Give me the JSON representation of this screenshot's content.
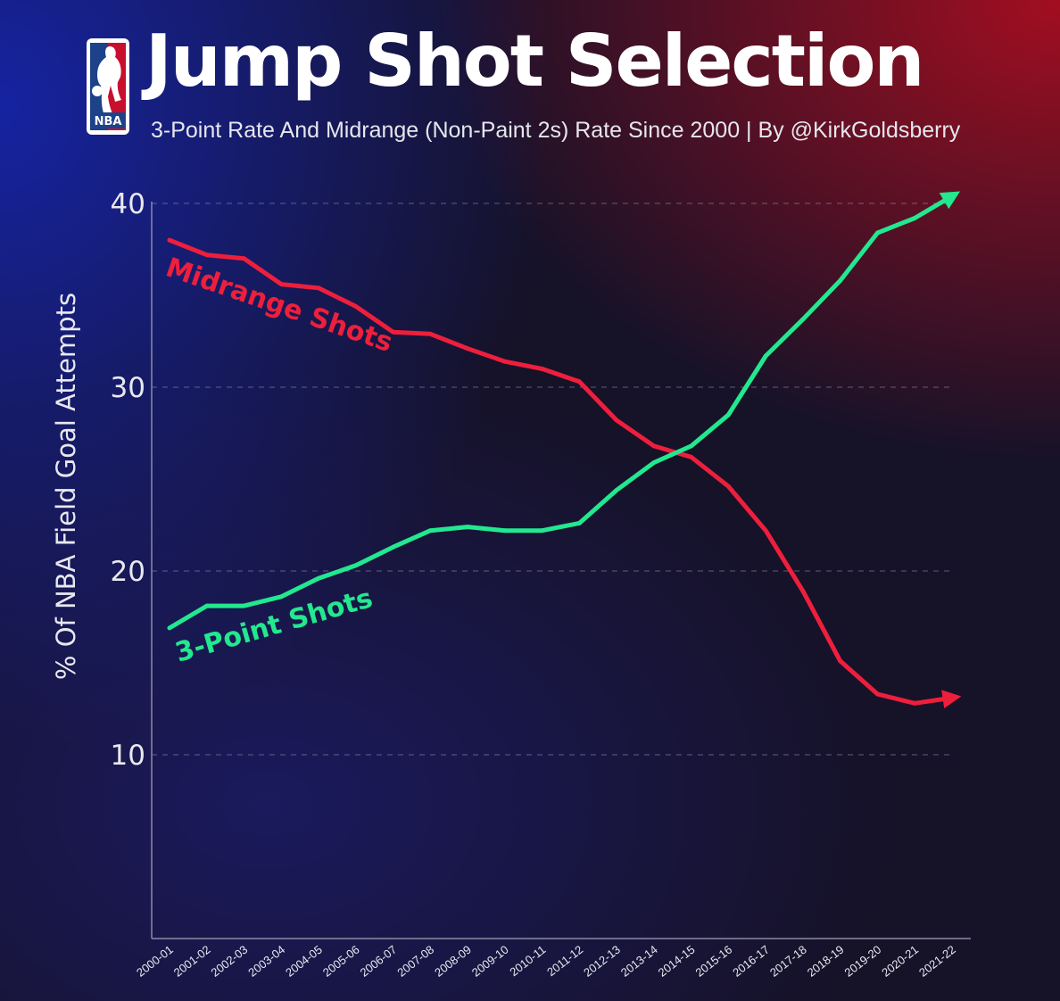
{
  "header": {
    "logo_text": "NBA",
    "title": "Jump Shot Selection",
    "subtitle": "3-Point Rate And Midrange (Non-Paint 2s) Rate Since 2000 | By @KirkGoldsberry"
  },
  "colors": {
    "midrange": "#ee1f3c",
    "three_point": "#22e88f",
    "grid": "#9a9ab8",
    "axis_text": "#e8e8f0"
  },
  "chart_data": {
    "type": "line",
    "title": "Jump Shot Selection",
    "subtitle": "3-Point Rate And Midrange (Non-Paint 2s) Rate Since 2000 | By @KirkGoldsberry",
    "xlabel": "",
    "ylabel": "% Of NBA Field Goal Attempts",
    "ylim": [
      0,
      40
    ],
    "yticks": [
      10,
      20,
      30,
      40
    ],
    "grid": "horizontal dashed",
    "legend": "inline labels",
    "categories": [
      "2000-01",
      "2001-02",
      "2002-03",
      "2003-04",
      "2004-05",
      "2005-06",
      "2006-07",
      "2007-08",
      "2008-09",
      "2009-10",
      "2010-11",
      "2011-12",
      "2012-13",
      "2013-14",
      "2014-15",
      "2015-16",
      "2016-17",
      "2017-18",
      "2018-19",
      "2019-20",
      "2020-21",
      "2021-22"
    ],
    "series": [
      {
        "name": "Midrange Shots",
        "color": "#ee1f3c",
        "values": [
          38.0,
          37.2,
          37.0,
          35.6,
          35.4,
          34.4,
          33.0,
          32.9,
          32.1,
          31.4,
          31.0,
          30.3,
          28.2,
          26.8,
          26.2,
          24.6,
          22.2,
          18.9,
          15.1,
          13.3,
          12.8,
          13.1
        ]
      },
      {
        "name": "3-Point Shots",
        "color": "#22e88f",
        "values": [
          16.9,
          18.1,
          18.1,
          18.6,
          19.6,
          20.3,
          21.3,
          22.2,
          22.4,
          22.2,
          22.2,
          22.6,
          24.4,
          25.9,
          26.8,
          28.5,
          31.7,
          33.7,
          35.8,
          38.4,
          39.2,
          40.4
        ]
      }
    ]
  }
}
